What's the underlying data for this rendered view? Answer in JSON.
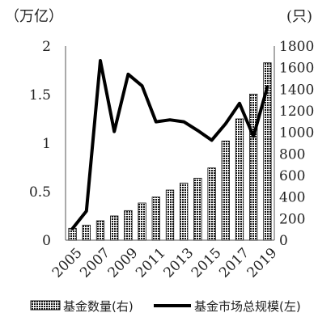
{
  "chart_data": {
    "type": "bar",
    "categories": [
      "2005",
      "2006",
      "2007",
      "2008",
      "2009",
      "2010",
      "2011",
      "2012",
      "2013",
      "2014",
      "2015",
      "2016",
      "2017",
      "2018",
      "2019"
    ],
    "x_tick_labels": [
      "2005",
      "2007",
      "2009",
      "2011",
      "2013",
      "2015",
      "2017",
      "2019"
    ],
    "left_axis": {
      "unit": "（万亿）",
      "ylim": [
        0,
        2
      ],
      "ticks": [
        "0",
        "0.5",
        "1",
        "1.5",
        "2"
      ]
    },
    "right_axis": {
      "unit": "(只)",
      "ylim": [
        0,
        1800
      ],
      "ticks": [
        "0",
        "200",
        "400",
        "600",
        "800",
        "1000",
        "1200",
        "1400",
        "1600",
        "1800"
      ]
    },
    "series": [
      {
        "name": "基金数量(右)",
        "type": "bar",
        "axis": "right",
        "values": [
          110,
          140,
          180,
          225,
          275,
          345,
          400,
          465,
          530,
          575,
          670,
          920,
          1125,
          1355,
          1645
        ]
      },
      {
        "name": "基金市场总规模(左)",
        "type": "line",
        "axis": "left",
        "color": "#000000",
        "values": [
          0.12,
          0.3,
          1.85,
          1.12,
          1.71,
          1.59,
          1.22,
          1.24,
          1.22,
          1.13,
          1.03,
          1.2,
          1.41,
          1.07,
          1.58
        ]
      }
    ],
    "grid": false,
    "legend_position": "bottom"
  }
}
